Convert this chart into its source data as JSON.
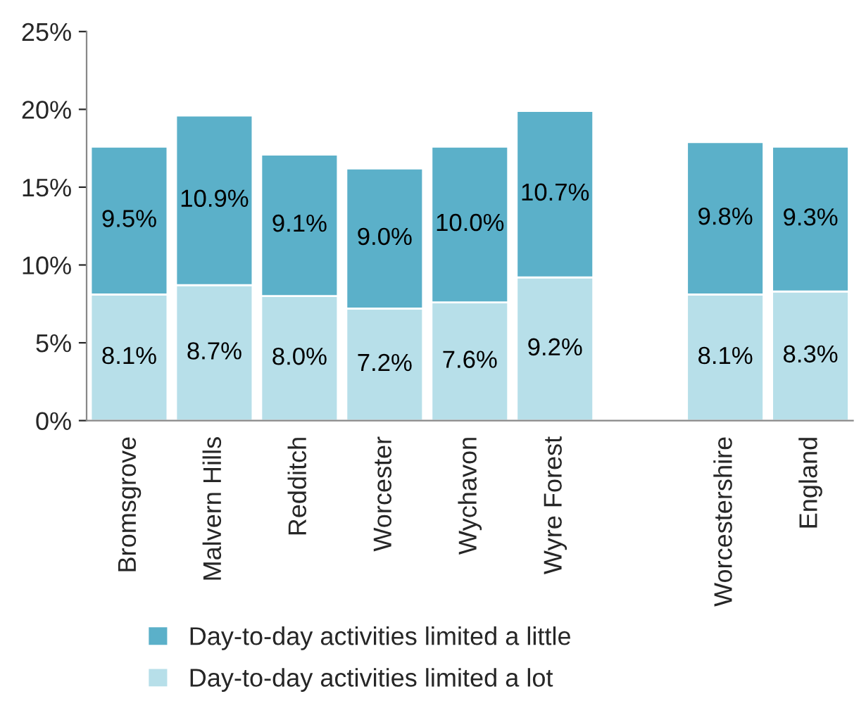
{
  "chart_data": {
    "type": "bar",
    "stacked": true,
    "categories": [
      "Bromsgrove",
      "Malvern Hills",
      "Redditch",
      "Worcester",
      "Wychavon",
      "Wyre Forest",
      null,
      "Worcestershire",
      "England"
    ],
    "series": [
      {
        "name": "Day-to-day activities limited a lot",
        "color": "#b7dfe9",
        "values": [
          8.1,
          8.7,
          8.0,
          7.2,
          7.6,
          9.2,
          null,
          8.1,
          8.3
        ],
        "value_labels": [
          "8.1%",
          "8.7%",
          "8.0%",
          "7.2%",
          "7.6%",
          "9.2%",
          null,
          "8.1%",
          "8.3%"
        ]
      },
      {
        "name": "Day-to-day activities limited a little",
        "color": "#5bb0c9",
        "values": [
          9.5,
          10.9,
          9.1,
          9.0,
          10.0,
          10.7,
          null,
          9.8,
          9.3
        ],
        "value_labels": [
          "9.5%",
          "10.9%",
          "9.1%",
          "9.0%",
          "10.0%",
          "10.7%",
          null,
          "9.8%",
          "9.3%"
        ]
      }
    ],
    "ylim": [
      0,
      25
    ],
    "yticks": [
      {
        "value": 0,
        "label": "0%"
      },
      {
        "value": 5,
        "label": "5%"
      },
      {
        "value": 10,
        "label": "10%"
      },
      {
        "value": 15,
        "label": "15%"
      },
      {
        "value": 20,
        "label": "20%"
      },
      {
        "value": 25,
        "label": "25%"
      }
    ],
    "grid": false,
    "legend": "bottom"
  }
}
